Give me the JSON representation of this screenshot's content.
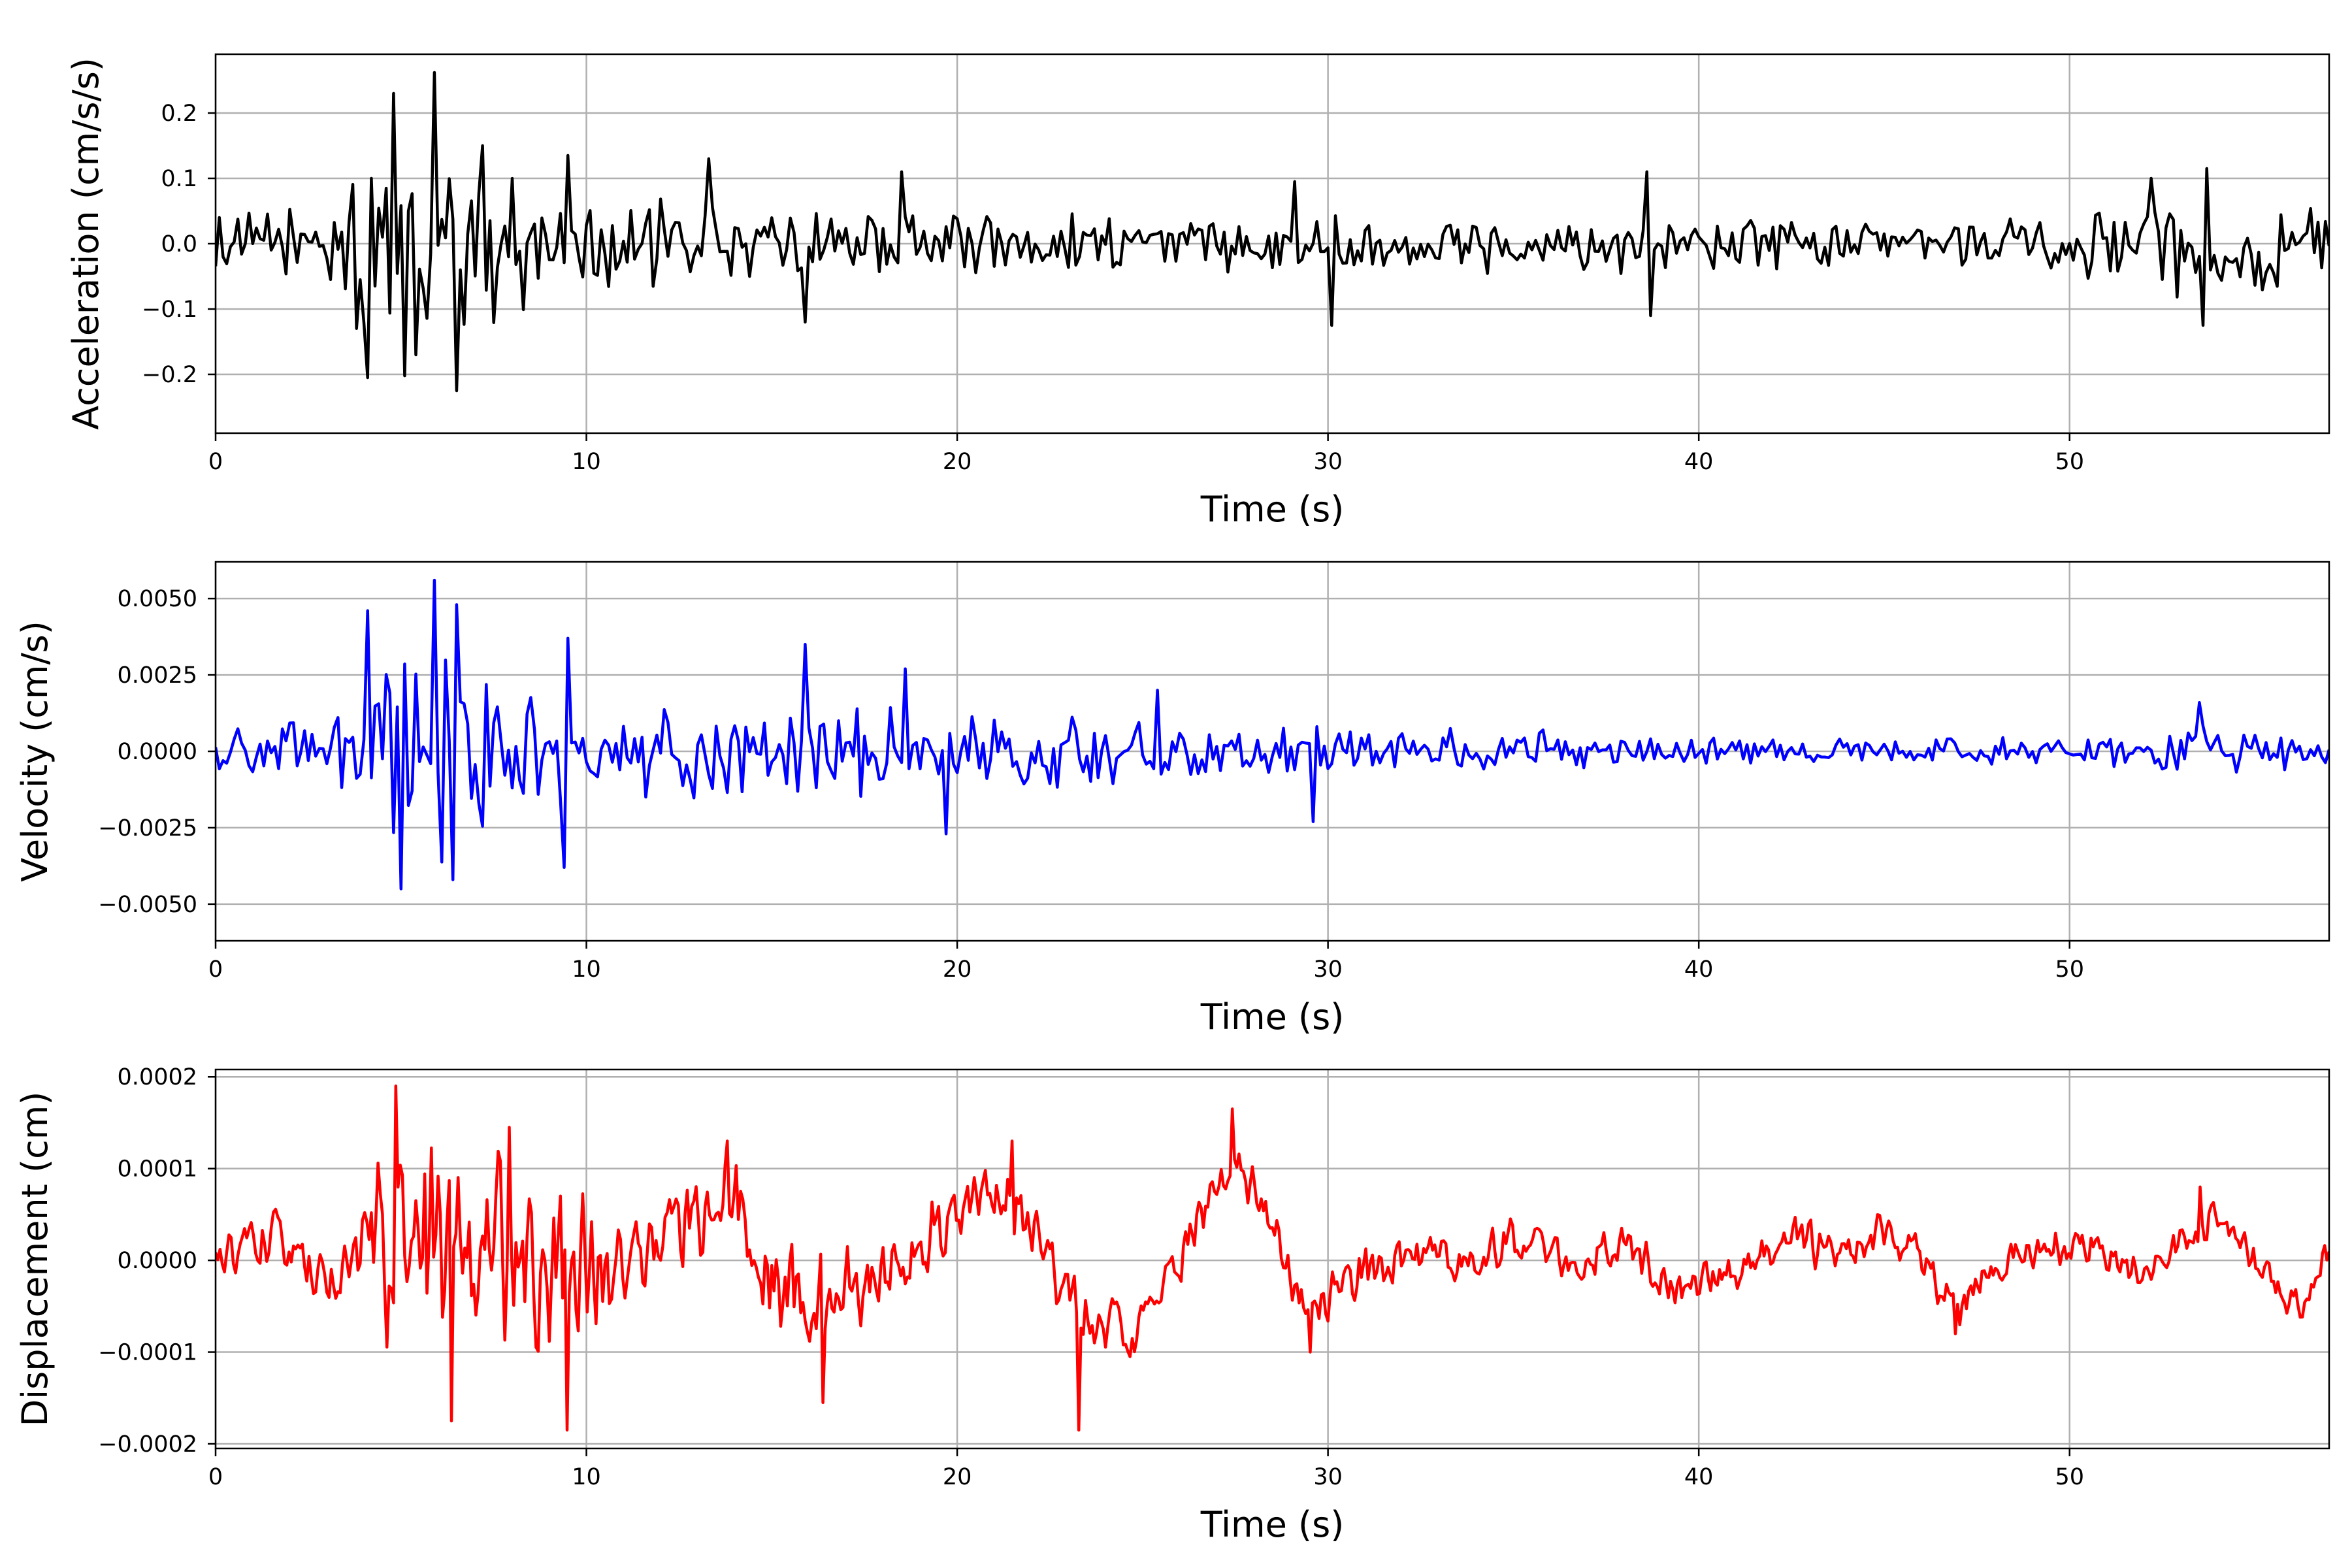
{
  "chart_data": [
    {
      "type": "line",
      "xlabel": "Time (s)",
      "ylabel": "Acceleration (cm/s/s)",
      "xlim": [
        0,
        57
      ],
      "ylim": [
        -0.29,
        0.29
      ],
      "xticks": [
        0,
        10,
        20,
        30,
        40,
        50
      ],
      "xtick_labels": [
        "0",
        "10",
        "20",
        "30",
        "40",
        "50"
      ],
      "yticks": [
        -0.2,
        -0.1,
        0.0,
        0.1,
        0.2
      ],
      "ytick_labels": [
        "−0.2",
        "−0.1",
        "0.0",
        "0.1",
        "0.2"
      ],
      "grid": true,
      "series": [
        {
          "color": "#000000",
          "sample_step_s": 0.1,
          "envelope": [
            [
              0,
              0.05
            ],
            [
              3,
              0.07
            ],
            [
              4,
              0.2
            ],
            [
              6,
              0.24
            ],
            [
              8,
              0.12
            ],
            [
              10,
              0.08
            ],
            [
              14,
              0.07
            ],
            [
              20,
              0.06
            ],
            [
              30,
              0.05
            ],
            [
              38.5,
              0.05
            ],
            [
              45,
              0.035
            ],
            [
              50,
              0.06
            ],
            [
              53,
              0.1
            ],
            [
              57,
              0.07
            ]
          ],
          "peaks": [
            [
              4.1,
              -0.205
            ],
            [
              4.8,
              0.23
            ],
            [
              5.4,
              -0.17
            ],
            [
              5.9,
              0.262
            ],
            [
              6.5,
              -0.225
            ],
            [
              7.2,
              0.15
            ],
            [
              9.5,
              0.135
            ],
            [
              13.3,
              0.13
            ],
            [
              18.5,
              0.11
            ],
            [
              15.9,
              -0.12
            ],
            [
              29.1,
              0.095
            ],
            [
              30.1,
              -0.125
            ],
            [
              38.6,
              0.11
            ],
            [
              38.7,
              -0.11
            ],
            [
              52.2,
              0.1
            ],
            [
              53.6,
              -0.125
            ],
            [
              53.7,
              0.115
            ]
          ]
        }
      ]
    },
    {
      "type": "line",
      "xlabel": "Time (s)",
      "ylabel": "Velocity (cm/s)",
      "xlim": [
        0,
        57
      ],
      "ylim": [
        -0.0062,
        0.0062
      ],
      "xticks": [
        0,
        10,
        20,
        30,
        40,
        50
      ],
      "xtick_labels": [
        "0",
        "10",
        "20",
        "30",
        "40",
        "50"
      ],
      "yticks": [
        -0.005,
        -0.0025,
        0.0,
        0.0025,
        0.005
      ],
      "ytick_labels": [
        "−0.0050",
        "−0.0025",
        "0.0000",
        "0.0025",
        "0.0050"
      ],
      "grid": true,
      "series": [
        {
          "color": "#0000ff",
          "sample_step_s": 0.1,
          "envelope": [
            [
              0,
              0.0008
            ],
            [
              3,
              0.0012
            ],
            [
              4,
              0.0035
            ],
            [
              6,
              0.0045
            ],
            [
              8,
              0.0025
            ],
            [
              10,
              0.0018
            ],
            [
              16,
              0.0018
            ],
            [
              20,
              0.0013
            ],
            [
              30,
              0.001
            ],
            [
              40,
              0.0006
            ],
            [
              45,
              0.0005
            ],
            [
              50,
              0.0006
            ],
            [
              53.5,
              0.001
            ],
            [
              57,
              0.0007
            ]
          ],
          "peaks": [
            [
              4.1,
              0.0046
            ],
            [
              4.95,
              -0.0045
            ],
            [
              5.9,
              0.0056
            ],
            [
              6.4,
              -0.0042
            ],
            [
              6.5,
              0.0048
            ],
            [
              9.5,
              0.0037
            ],
            [
              9.4,
              -0.0038
            ],
            [
              15.9,
              0.0035
            ],
            [
              18.6,
              0.0027
            ],
            [
              19.7,
              -0.0027
            ],
            [
              25.4,
              0.002
            ],
            [
              29.6,
              -0.0023
            ],
            [
              53.5,
              0.0016
            ]
          ]
        }
      ]
    },
    {
      "type": "line",
      "xlabel": "Time (s)",
      "ylabel": "Displacement (cm)",
      "xlim": [
        0,
        57
      ],
      "ylim": [
        -0.000205,
        0.000208
      ],
      "xticks": [
        0,
        10,
        20,
        30,
        40,
        50
      ],
      "xtick_labels": [
        "0",
        "10",
        "20",
        "30",
        "40",
        "50"
      ],
      "yticks": [
        -0.0002,
        -0.0001,
        0.0,
        0.0001,
        0.0002
      ],
      "ytick_labels": [
        "−0.0002",
        "−0.0001",
        "0.0000",
        "0.0001",
        "0.0002"
      ],
      "grid": true,
      "series": [
        {
          "color": "#ff0000",
          "sample_step_s": 0.06,
          "trend": [
            [
              0,
              0.0
            ],
            [
              1.5,
              3e-05
            ],
            [
              3.0,
              -3e-05
            ],
            [
              4.0,
              1e-05
            ],
            [
              5.5,
              0.0
            ],
            [
              8.0,
              1e-05
            ],
            [
              10.0,
              -1e-05
            ],
            [
              12.0,
              2e-05
            ],
            [
              14.0,
              7e-05
            ],
            [
              15.0,
              -2e-05
            ],
            [
              16.5,
              -4e-05
            ],
            [
              18.0,
              -2e-05
            ],
            [
              20.0,
              5e-05
            ],
            [
              21.5,
              7e-05
            ],
            [
              22.5,
              0.0
            ],
            [
              23.3,
              -6e-05
            ],
            [
              25.0,
              -8e-05
            ],
            [
              26.0,
              0.0
            ],
            [
              27.3,
              0.00011
            ],
            [
              28.5,
              4e-05
            ],
            [
              29.5,
              -6e-05
            ],
            [
              31.0,
              -1e-05
            ],
            [
              33.0,
              0.0
            ],
            [
              35.0,
              2e-05
            ],
            [
              36.5,
              0.0
            ],
            [
              38.0,
              1e-05
            ],
            [
              39.5,
              -3e-05
            ],
            [
              41.0,
              -1e-05
            ],
            [
              42.5,
              3e-05
            ],
            [
              44.0,
              0.0
            ],
            [
              45.0,
              3e-05
            ],
            [
              46.0,
              0.0
            ],
            [
              47.0,
              -6e-05
            ],
            [
              48.0,
              0.0
            ],
            [
              49.5,
              2e-05
            ],
            [
              51.0,
              1e-05
            ],
            [
              52.0,
              -2e-05
            ],
            [
              54.0,
              5e-05
            ],
            [
              55.5,
              -3e-05
            ],
            [
              56.3,
              -5e-05
            ],
            [
              57.0,
              1e-05
            ]
          ],
          "noise_envelope": [
            [
              0,
              2e-05
            ],
            [
              3.8,
              2e-05
            ],
            [
              4.5,
              9e-05
            ],
            [
              7.5,
              9e-05
            ],
            [
              9.5,
              7e-05
            ],
            [
              11,
              4e-05
            ],
            [
              16,
              4e-05
            ],
            [
              20,
              3e-05
            ],
            [
              30,
              2e-05
            ],
            [
              57,
              1.5e-05
            ]
          ],
          "peaks": [
            [
              4.85,
              0.00019
            ],
            [
              6.35,
              -0.000175
            ],
            [
              7.9,
              0.000145
            ],
            [
              9.5,
              -0.000185
            ],
            [
              13.8,
              0.00013
            ],
            [
              16.4,
              -0.000155
            ],
            [
              21.5,
              0.00013
            ],
            [
              23.3,
              -0.000185
            ],
            [
              27.4,
              0.000165
            ],
            [
              29.5,
              -0.0001
            ],
            [
              46.9,
              -8e-05
            ],
            [
              53.5,
              8e-05
            ]
          ]
        }
      ]
    }
  ]
}
